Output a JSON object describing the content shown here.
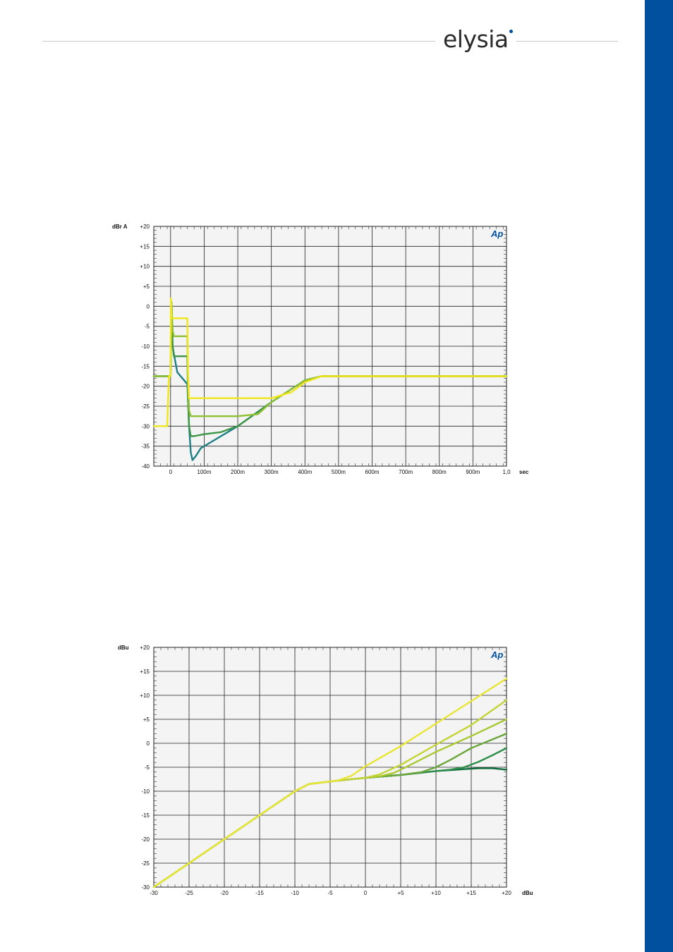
{
  "brand": {
    "logo_text": "elysia",
    "color": "#0050a0",
    "band_color": "#0050a0"
  },
  "chart_data": [
    {
      "type": "line",
      "ylabel": "dBr A",
      "xlabel": "sec",
      "badge": "Ap",
      "xlim": [
        -0.05,
        1.0
      ],
      "ylim": [
        -40,
        20
      ],
      "x_ticks": [
        0,
        0.1,
        0.2,
        0.3,
        0.4,
        0.5,
        0.6,
        0.7,
        0.8,
        0.9,
        1.0
      ],
      "x_tick_labels": [
        "0",
        "100m",
        "200m",
        "300m",
        "400m",
        "500m",
        "600m",
        "700m",
        "800m",
        "900m",
        "1,0"
      ],
      "y_ticks": [
        20,
        15,
        10,
        5,
        0,
        -5,
        -10,
        -15,
        -20,
        -25,
        -30,
        -35,
        -40
      ],
      "y_tick_labels": [
        "+20",
        "+15",
        "+10",
        "+5",
        "0",
        "-5",
        "-10",
        "-15",
        "-20",
        "-25",
        "-30",
        "-35",
        "-40"
      ],
      "grid": true,
      "background": "#f4f4f4",
      "series": [
        {
          "color": "#1f7f86",
          "x": [
            -0.05,
            -0.01,
            0.0,
            0.003,
            0.006,
            0.01,
            0.02,
            0.05,
            0.055,
            0.06,
            0.065,
            0.075,
            0.09,
            0.12,
            0.2,
            0.3,
            0.4,
            0.45,
            0.5,
            0.7,
            1.0
          ],
          "y": [
            -17.5,
            -17.5,
            -17.5,
            1,
            -10,
            -12,
            -16.5,
            -19.5,
            -30,
            -36.5,
            -38.5,
            -37.5,
            -35.5,
            -34,
            -30,
            -24,
            -18.5,
            -17.5,
            -17.5,
            -17.5,
            -17.5
          ]
        },
        {
          "color": "#3d9646",
          "x": [
            -0.05,
            -0.01,
            0.0,
            0.003,
            0.006,
            0.01,
            0.05,
            0.052,
            0.055,
            0.06,
            0.07,
            0.1,
            0.15,
            0.2,
            0.3,
            0.4,
            0.45,
            0.5,
            0.7,
            1.0
          ],
          "y": [
            -17.5,
            -17.5,
            -17.5,
            1,
            -10,
            -12.5,
            -12.5,
            -24,
            -30,
            -32.5,
            -32.5,
            -32,
            -31.5,
            -30,
            -24,
            -18.5,
            -17.5,
            -17.5,
            -17.5,
            -17.5
          ]
        },
        {
          "color": "#8fbf33",
          "x": [
            -0.05,
            -0.01,
            0.0,
            0.003,
            0.006,
            0.01,
            0.05,
            0.052,
            0.055,
            0.06,
            0.07,
            0.1,
            0.2,
            0.26,
            0.3,
            0.4,
            0.45,
            0.5,
            0.7,
            1.0
          ],
          "y": [
            -17.5,
            -17.5,
            -17.5,
            1,
            -6,
            -7.5,
            -7.5,
            -20,
            -26,
            -27.5,
            -27.5,
            -27.5,
            -27.5,
            -27,
            -24,
            -18.5,
            -17.5,
            -17.5,
            -17.5,
            -17.5
          ]
        },
        {
          "color": "#f0e619",
          "x": [
            -0.05,
            -0.01,
            -0.005,
            0.0,
            0.001,
            0.003,
            0.01,
            0.05,
            0.052,
            0.055,
            0.1,
            0.2,
            0.3,
            0.36,
            0.4,
            0.45,
            0.5,
            0.7,
            1.0
          ],
          "y": [
            -30,
            -30,
            -17.5,
            -17.5,
            2,
            -3,
            -3,
            -3,
            -17,
            -23,
            -23,
            -23,
            -23,
            -21.5,
            -19,
            -17.5,
            -17.5,
            -17.5,
            -17.5
          ]
        }
      ]
    },
    {
      "type": "line",
      "ylabel": "dBu",
      "xlabel": "dBu",
      "badge": "Ap",
      "xlim": [
        -30,
        20
      ],
      "ylim": [
        -30,
        20
      ],
      "x_ticks": [
        -30,
        -25,
        -20,
        -15,
        -10,
        -5,
        0,
        5,
        10,
        15,
        20
      ],
      "x_tick_labels": [
        "-30",
        "-25",
        "-20",
        "-15",
        "-10",
        "-5",
        "0",
        "+5",
        "+10",
        "+15",
        "+20"
      ],
      "y_ticks": [
        20,
        15,
        10,
        5,
        0,
        -5,
        -10,
        -15,
        -20,
        -25,
        -30
      ],
      "y_tick_labels": [
        "+20",
        "+15",
        "+10",
        "+5",
        "0",
        "-5",
        "-10",
        "-15",
        "-20",
        "-25",
        "-30"
      ],
      "grid": true,
      "background": "#f4f4f4",
      "series": [
        {
          "color": "#0c6b3c",
          "x": [
            -30,
            -10,
            -8,
            -4,
            0,
            5,
            10,
            14,
            16,
            18,
            20
          ],
          "y": [
            -30,
            -10,
            -8.5,
            -7.8,
            -7.2,
            -6.6,
            -5.8,
            -5.4,
            -5.2,
            -5.2,
            -5.5
          ]
        },
        {
          "color": "#2f8f4a",
          "x": [
            -30,
            -10,
            -8,
            -4,
            0,
            5,
            10,
            12,
            14,
            16,
            18,
            20
          ],
          "y": [
            -30,
            -10,
            -8.5,
            -7.8,
            -7.2,
            -6.6,
            -5.8,
            -5.5,
            -5,
            -3.9,
            -2.5,
            -1
          ]
        },
        {
          "color": "#6aa63a",
          "x": [
            -30,
            -10,
            -8,
            -4,
            0,
            5,
            8,
            10,
            12,
            15,
            20
          ],
          "y": [
            -30,
            -10,
            -8.5,
            -7.8,
            -7.2,
            -6.6,
            -6,
            -5,
            -3.5,
            -1,
            2
          ]
        },
        {
          "color": "#a9c932",
          "x": [
            -30,
            -10,
            -8,
            -4,
            0,
            2,
            4,
            6,
            10,
            15,
            20
          ],
          "y": [
            -30,
            -10,
            -8.5,
            -7.8,
            -7.2,
            -6.9,
            -6.2,
            -4.8,
            -1.8,
            1.5,
            5
          ]
        },
        {
          "color": "#c4d432",
          "x": [
            -30,
            -10,
            -8,
            -4,
            0,
            2,
            5,
            10,
            15,
            20
          ],
          "y": [
            -30,
            -10,
            -8.5,
            -7.8,
            -7.2,
            -6.5,
            -4.5,
            -0.3,
            3.8,
            9
          ]
        },
        {
          "color": "#e8e632",
          "x": [
            -30,
            -10,
            -8,
            -4,
            -2,
            0,
            5,
            10,
            15,
            20
          ],
          "y": [
            -30,
            -10,
            -8.5,
            -7.8,
            -6.8,
            -4.8,
            -0.6,
            4.1,
            8.8,
            13.5
          ]
        }
      ]
    }
  ]
}
